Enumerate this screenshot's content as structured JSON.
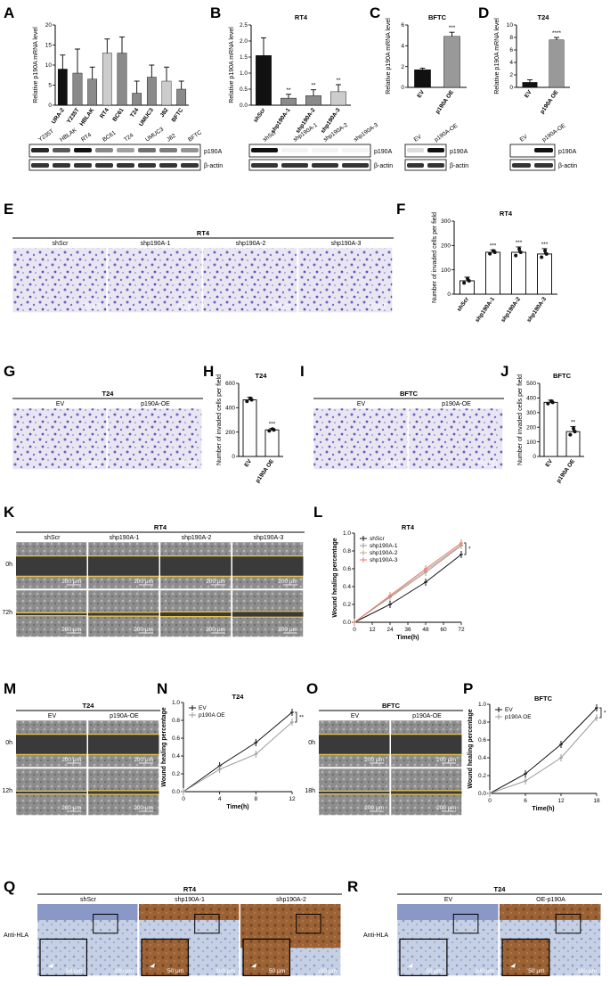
{
  "panels": {
    "A": "A",
    "B": "B",
    "C": "C",
    "D": "D",
    "E": "E",
    "F": "F",
    "G": "G",
    "H": "H",
    "I": "I",
    "J": "J",
    "K": "K",
    "L": "L",
    "M": "M",
    "N": "N",
    "O": "O",
    "P": "P",
    "Q": "Q",
    "R": "R"
  },
  "colors": {
    "bar_black": "#111111",
    "bar_grey": "#8a8a8a",
    "bar_light": "#cccccc",
    "stain": "#5a5ac8",
    "tissue_brown": "#8b5a2b",
    "scratch_line": "#e8c34a",
    "line_red": "#e87a6c",
    "line_grey": "#9a9a9a"
  },
  "common": {
    "ylabel_mrna": "Relative p190A mRNA level",
    "ylabel_invaded": "Number of invaded cells per field",
    "ylabel_wound": "Wound healing percentage",
    "xlabel_time": "Time(h)",
    "p190A": "p190A",
    "actin": "β-actin",
    "scale_200": "200 μm",
    "scale_50": "50 μm",
    "scale_100": "100 μm",
    "anti_hla": "Anti-HLA",
    "h0": "0h",
    "h72": "72h",
    "h12": "12h",
    "h18": "18h"
  },
  "chart_data": [
    {
      "panel": "A",
      "type": "bar",
      "ylabel": "Relative p190A mRNA level",
      "ylim": [
        0,
        20
      ],
      "yticks": [
        "0",
        "5",
        "10",
        "15",
        "20"
      ],
      "categories": [
        "UM-UC-2",
        "Y235T",
        "HBLAK",
        "RT4",
        "BC61",
        "T24",
        "UMUC3",
        "J82",
        "BFTC"
      ],
      "display_categories": [
        "URA-2",
        "Y235T",
        "HBLAK",
        "RT4",
        "BC61",
        "T24",
        "UMUC3",
        "J82",
        "BFTC"
      ],
      "values": [
        9,
        8,
        6.5,
        13,
        13,
        3,
        7,
        6,
        4
      ],
      "errors": [
        3.5,
        6,
        3,
        3.5,
        4,
        3,
        3,
        3.5,
        2
      ],
      "colors": [
        "#111111",
        "#8a8a8a",
        "#8a8a8a",
        "#cccccc",
        "#8a8a8a",
        "#8a8a8a",
        "#8a8a8a",
        "#cccccc",
        "#8a8a8a"
      ]
    },
    {
      "panel": "B",
      "type": "bar",
      "title": "RT4",
      "ylabel": "Relative p190A mRNA level",
      "ylim": [
        0,
        2.5
      ],
      "yticks": [
        "0.0",
        "0.5",
        "1.0",
        "1.5",
        "2.0",
        "2.5"
      ],
      "categories": [
        "shScr",
        "shp190A-1",
        "shp190A-2",
        "shp190A-3"
      ],
      "values": [
        1.55,
        0.22,
        0.3,
        0.42
      ],
      "errors": [
        0.55,
        0.12,
        0.18,
        0.22
      ],
      "sig": [
        "",
        "**",
        "**",
        "**"
      ],
      "colors": [
        "#111111",
        "#8a8a8a",
        "#8a8a8a",
        "#cccccc"
      ]
    },
    {
      "panel": "C",
      "type": "bar",
      "title": "BFTC",
      "ylabel": "Relative p190A mRNA level",
      "ylim": [
        0,
        6
      ],
      "yticks": [
        "0",
        "2",
        "4",
        "6"
      ],
      "categories": [
        "EV",
        "p190A OE"
      ],
      "values": [
        1.7,
        4.9
      ],
      "errors": [
        0.15,
        0.4
      ],
      "sig": [
        "",
        "***"
      ],
      "colors": [
        "#111111",
        "#999999"
      ]
    },
    {
      "panel": "D",
      "type": "bar",
      "title": "T24",
      "ylabel": "Relative p190A mRNA level",
      "ylim": [
        0,
        10
      ],
      "yticks": [
        "0",
        "2",
        "4",
        "6",
        "8",
        "10"
      ],
      "categories": [
        "EV",
        "p190A OE"
      ],
      "values": [
        0.8,
        7.6
      ],
      "errors": [
        0.4,
        0.4
      ],
      "sig": [
        "",
        "****"
      ],
      "colors": [
        "#111111",
        "#999999"
      ]
    },
    {
      "panel": "F",
      "type": "bar",
      "title": "RT4",
      "ylabel": "Number of invaded cells per field",
      "ylim": [
        0,
        300
      ],
      "yticks": [
        "0",
        "100",
        "200",
        "300"
      ],
      "categories": [
        "shScr",
        "shp190A-1",
        "shp190A-2",
        "shp190A-3"
      ],
      "values": [
        55,
        172,
        172,
        165
      ],
      "errors": [
        15,
        10,
        22,
        22
      ],
      "sig": [
        "",
        "***",
        "***",
        "***"
      ]
    },
    {
      "panel": "H",
      "type": "bar",
      "title": "T24",
      "ylabel": "Number of invaded cells per field",
      "ylim": [
        0,
        600
      ],
      "yticks": [
        "0",
        "200",
        "400",
        "600"
      ],
      "categories": [
        "EV",
        "p190A OE"
      ],
      "values": [
        465,
        218
      ],
      "errors": [
        20,
        12
      ],
      "sig": [
        "",
        "***"
      ]
    },
    {
      "panel": "J",
      "type": "bar",
      "title": "BFTC",
      "ylabel": "Number of invaded cells per field",
      "ylim": [
        0,
        500
      ],
      "yticks": [
        "0",
        "100",
        "200",
        "300",
        "400",
        "500"
      ],
      "categories": [
        "EV",
        "p190A OE"
      ],
      "values": [
        370,
        170
      ],
      "errors": [
        15,
        35
      ],
      "sig": [
        "",
        "**"
      ]
    },
    {
      "panel": "L",
      "type": "line",
      "title": "RT4",
      "xlabel": "Time(h)",
      "ylabel": "Wound healing percentage",
      "xlim": [
        0,
        72
      ],
      "ylim": [
        0,
        1.0
      ],
      "xticks": [
        "0",
        "12",
        "24",
        "36",
        "48",
        "60",
        "72"
      ],
      "yticks": [
        "0.0",
        "0.2",
        "0.4",
        "0.6",
        "0.8",
        "1.0"
      ],
      "x": [
        0,
        24,
        48,
        72
      ],
      "sig": "*",
      "series": [
        {
          "name": "shScr",
          "values": [
            0,
            0.2,
            0.45,
            0.76
          ],
          "color": "#111111"
        },
        {
          "name": "shp190A-1",
          "values": [
            0,
            0.28,
            0.56,
            0.86
          ],
          "color": "#9a9a9a"
        },
        {
          "name": "shp190A-2",
          "values": [
            0,
            0.29,
            0.58,
            0.87
          ],
          "color": "#c4a890"
        },
        {
          "name": "shp190A-3",
          "values": [
            0,
            0.3,
            0.6,
            0.89
          ],
          "color": "#e87a6c"
        }
      ]
    },
    {
      "panel": "N",
      "type": "line",
      "title": "T24",
      "xlabel": "Time(h)",
      "ylabel": "Wound healing percentage",
      "xlim": [
        0,
        12
      ],
      "ylim": [
        0,
        1.0
      ],
      "xticks": [
        "0",
        "4",
        "8",
        "12"
      ],
      "yticks": [
        "0.0",
        "0.2",
        "0.4",
        "0.6",
        "0.8",
        "1.0"
      ],
      "x": [
        0,
        4,
        8,
        12
      ],
      "sig": "**",
      "series": [
        {
          "name": "EV",
          "values": [
            0,
            0.29,
            0.55,
            0.89
          ],
          "color": "#111111"
        },
        {
          "name": "p190A OE",
          "values": [
            0,
            0.25,
            0.42,
            0.78
          ],
          "color": "#9a9a9a"
        }
      ]
    },
    {
      "panel": "P",
      "type": "line",
      "title": "BFTC",
      "xlabel": "Time(h)",
      "ylabel": "Wound healing percentage",
      "xlim": [
        0,
        18
      ],
      "ylim": [
        0,
        1.0
      ],
      "xticks": [
        "0",
        "6",
        "12",
        "18"
      ],
      "yticks": [
        "0.0",
        "0.2",
        "0.4",
        "0.6",
        "0.8",
        "1.0"
      ],
      "x": [
        0,
        6,
        12,
        18
      ],
      "sig": "*",
      "series": [
        {
          "name": "EV",
          "values": [
            0,
            0.22,
            0.55,
            0.96
          ],
          "color": "#111111"
        },
        {
          "name": "p190A OE",
          "values": [
            0,
            0.14,
            0.4,
            0.85
          ],
          "color": "#9a9a9a"
        }
      ]
    }
  ],
  "blots": {
    "A": {
      "lanes": [
        "Y235T",
        "HBLAK",
        "RT4",
        "BC61",
        "T24",
        "UMUC3",
        "J82",
        "BFTC"
      ],
      "p190A": [
        0.9,
        0.7,
        1.0,
        0.5,
        0.4,
        0.6,
        0.55,
        0.45
      ]
    },
    "B": {
      "lanes": [
        "shScr",
        "shp190A-1",
        "shp190A-2",
        "shp190A-3"
      ],
      "p190A": [
        1.0,
        0.05,
        0.05,
        0.05
      ]
    },
    "C": {
      "lanes": [
        "EV",
        "p190A-OE"
      ],
      "p190A": [
        0.15,
        1.0
      ]
    },
    "D": {
      "lanes": [
        "EV",
        "p190A-OE"
      ],
      "p190A": [
        0.0,
        1.0
      ]
    }
  },
  "micro": {
    "E": {
      "title": "RT4",
      "labels": [
        "shScr",
        "shp190A-1",
        "shp190A-2",
        "shp190A-3"
      ]
    },
    "G": {
      "title": "T24",
      "labels": [
        "EV",
        "p190A-OE"
      ]
    },
    "I": {
      "title": "BFTC",
      "labels": [
        "EV",
        "p190A-OE"
      ]
    },
    "K": {
      "title": "RT4",
      "labels": [
        "shScr",
        "shp190A-1",
        "shp190A-2",
        "shp190A-3"
      ]
    },
    "M": {
      "title": "T24",
      "labels": [
        "EV",
        "p190A-OE"
      ]
    },
    "O": {
      "title": "BFTC",
      "labels": [
        "EV",
        "p190A-OE"
      ]
    },
    "Q": {
      "title": "RT4",
      "labels": [
        "shScr",
        "shp190A-1",
        "shp190A-2"
      ]
    },
    "R": {
      "title": "T24",
      "labels": [
        "EV",
        "OE-p190A"
      ]
    }
  }
}
